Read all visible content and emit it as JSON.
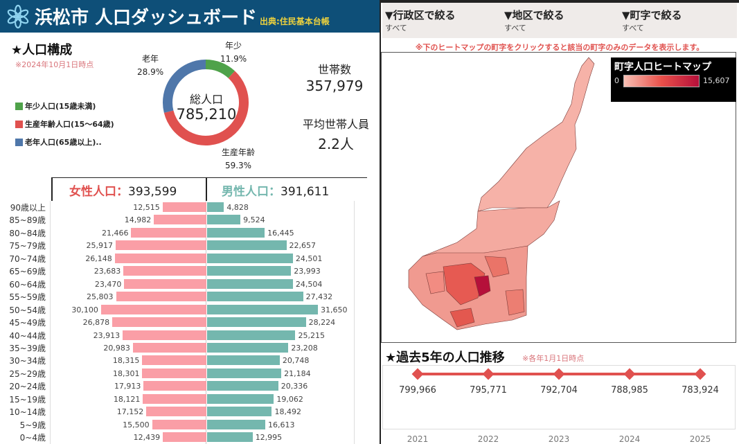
{
  "header": {
    "title": "浜松市 人口ダッシュボード",
    "source": "出典:住民基本台帳",
    "logo_icon": "snowflake-flower-icon",
    "color": "#0e4f78"
  },
  "filters": [
    {
      "label": "▼行政区で絞る",
      "value": "すべて"
    },
    {
      "label": "▼地区で絞る",
      "value": "すべて"
    },
    {
      "label": "▼町字で絞る",
      "value": "すべて"
    }
  ],
  "map": {
    "note": "※下のヒートマップの町字をクリックすると該当の町字のみのデータを表示します。",
    "legend_title": "町字人口ヒートマップ",
    "legend_min": "0",
    "legend_max": "15,607",
    "color_low": "#f8c0b4",
    "color_high": "#b5103a"
  },
  "composition": {
    "title": "★人口構成",
    "date_note": "※2024年10月1日時点",
    "legend": [
      {
        "label": "年少人口(15歳未満)",
        "color": "#4fa24a"
      },
      {
        "label": "生産年齢人口(15～64歳)",
        "color": "#e0514f"
      },
      {
        "label": "老年人口(65歳以上)..",
        "color": "#4f77aa"
      }
    ],
    "total_label": "総人口",
    "total_value": "785,210",
    "households_label": "世帯数",
    "households_value": "357,979",
    "avg_label": "平均世帯人員",
    "avg_value": "2.2人"
  },
  "pyramid": {
    "female_label": "女性人口：",
    "female_total": "393,599",
    "male_label": "男性人口：",
    "male_total": "391,611",
    "female_color": "#fa9ea6",
    "male_color": "#74b7ae"
  },
  "trend": {
    "title": "★過去5年の人口推移",
    "note": "※各年1月1日時点"
  },
  "chart_data": [
    {
      "type": "pie",
      "donut": true,
      "slices": [
        {
          "name": "年少",
          "label": "11.9%",
          "value": 11.9,
          "color": "#4fa24a"
        },
        {
          "name": "生産年齢",
          "label": "59.3%",
          "value": 59.3,
          "color": "#e0514f"
        },
        {
          "name": "老年",
          "label": "28.9%",
          "value": 28.9,
          "color": "#4f77aa"
        }
      ]
    },
    {
      "type": "bar",
      "orientation": "horizontal",
      "diverging": true,
      "categories": [
        "90歳以上",
        "85~89歳",
        "80~84歳",
        "75~79歳",
        "70~74歳",
        "65~69歳",
        "60~64歳",
        "55~59歳",
        "50~54歳",
        "45~49歳",
        "40~44歳",
        "35~39歳",
        "30~34歳",
        "25~29歳",
        "20~24歳",
        "15~19歳",
        "10~14歳",
        "5~9歳",
        "0~4歳"
      ],
      "series": [
        {
          "name": "女性人口",
          "values": [
            12515,
            14982,
            21466,
            25917,
            26148,
            23683,
            23470,
            25803,
            30100,
            26878,
            23913,
            20983,
            18315,
            18301,
            17913,
            18121,
            17152,
            15500,
            12439
          ]
        },
        {
          "name": "男性人口",
          "values": [
            4828,
            9524,
            16445,
            22657,
            24501,
            23993,
            24504,
            27432,
            31650,
            28224,
            25215,
            23208,
            20748,
            21184,
            20336,
            19062,
            18492,
            16613,
            12995
          ]
        }
      ]
    },
    {
      "type": "line",
      "x": [
        "2021",
        "2022",
        "2023",
        "2024",
        "2025"
      ],
      "values": [
        799966,
        795771,
        792704,
        788985,
        783924
      ],
      "labels": [
        "799,966",
        "795,771",
        "792,704",
        "788,985",
        "783,924"
      ],
      "color": "#e0514f"
    }
  ]
}
